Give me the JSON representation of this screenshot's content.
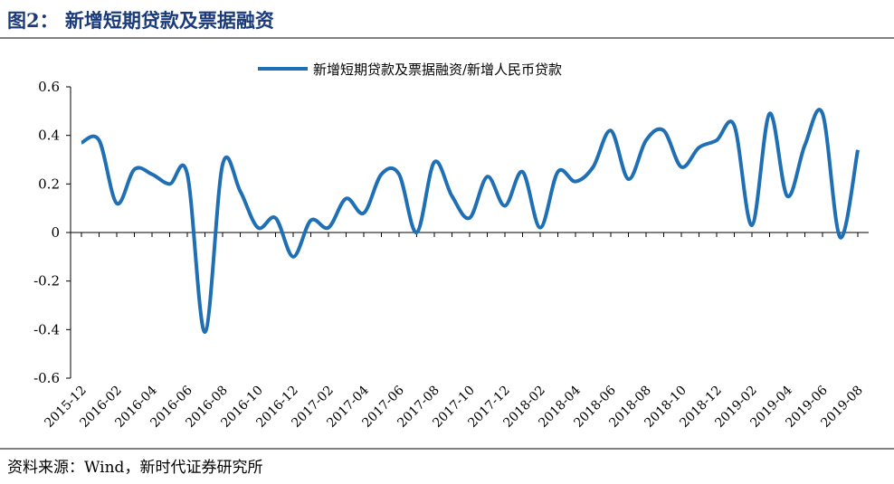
{
  "title": "图2： 新增短期贷款及票据融资",
  "source": "资料来源：Wind，新时代证券研究所",
  "chart_data": {
    "type": "line",
    "categories": [
      "2015-12",
      null,
      "2016-02",
      null,
      "2016-04",
      null,
      "2016-06",
      null,
      "2016-08",
      null,
      "2016-10",
      null,
      "2016-12",
      null,
      "2017-02",
      null,
      "2017-04",
      null,
      "2017-06",
      null,
      "2017-08",
      null,
      "2017-10",
      null,
      "2017-12",
      null,
      "2018-02",
      null,
      "2018-04",
      null,
      "2018-06",
      null,
      "2018-08",
      null,
      "2018-10",
      null,
      "2018-12",
      null,
      "2019-02",
      null,
      "2019-04",
      null,
      "2019-06",
      null,
      "2019-08"
    ],
    "series": [
      {
        "name": "新增短期贷款及票据融资/新增人民币贷款",
        "color": "#1f6fb5",
        "values": [
          0.37,
          0.38,
          0.12,
          0.26,
          0.24,
          0.2,
          0.24,
          -0.41,
          0.28,
          0.17,
          0.02,
          0.06,
          -0.1,
          0.05,
          0.02,
          0.14,
          0.08,
          0.24,
          0.24,
          0.0,
          0.29,
          0.15,
          0.06,
          0.23,
          0.11,
          0.25,
          0.02,
          0.25,
          0.21,
          0.27,
          0.42,
          0.22,
          0.38,
          0.42,
          0.27,
          0.35,
          0.38,
          0.44,
          0.03,
          0.49,
          0.15,
          0.36,
          0.49,
          -0.02,
          0.34
        ]
      }
    ],
    "ylim": [
      -0.6,
      0.6
    ],
    "yticks": [
      0.6,
      0.4,
      0.2,
      0,
      -0.2,
      -0.4,
      -0.6
    ],
    "legend": "top",
    "grid": false
  }
}
